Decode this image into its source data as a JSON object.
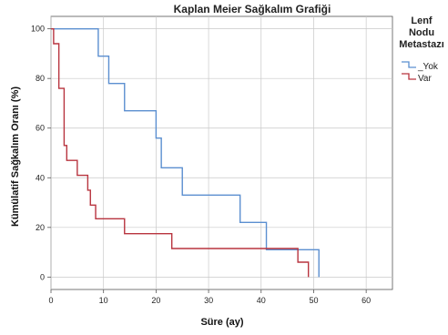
{
  "chart_data": {
    "type": "line",
    "title": "Kaplan Meier Sağkalım Grafiği",
    "xlabel": "Süre (ay)",
    "ylabel": "Kümülatif Sağkalım Oranı (%)",
    "xlim": [
      0,
      65
    ],
    "ylim": [
      -5,
      105
    ],
    "xticks": [
      0,
      10,
      20,
      30,
      40,
      50,
      60
    ],
    "yticks": [
      0,
      20,
      40,
      60,
      80,
      100
    ],
    "grid": true,
    "legend": {
      "title_lines": [
        "Lenf",
        "Nodu",
        "Metastazı"
      ],
      "placement": "right"
    },
    "series": [
      {
        "name": "Yok",
        "legend_label": "_Yok",
        "color": "#5b8fd0",
        "steps": [
          [
            0,
            100
          ],
          [
            9,
            100
          ],
          [
            9,
            89
          ],
          [
            11,
            89
          ],
          [
            11,
            78
          ],
          [
            14,
            78
          ],
          [
            14,
            67
          ],
          [
            20,
            67
          ],
          [
            20,
            56
          ],
          [
            21,
            56
          ],
          [
            21,
            44
          ],
          [
            25,
            44
          ],
          [
            25,
            33
          ],
          [
            36,
            33
          ],
          [
            36,
            22
          ],
          [
            41,
            22
          ],
          [
            41,
            11
          ],
          [
            51,
            11
          ],
          [
            51,
            0
          ]
        ]
      },
      {
        "name": "Var",
        "legend_label": "Var",
        "color": "#b8343f",
        "steps": [
          [
            0,
            100
          ],
          [
            0.5,
            100
          ],
          [
            0.5,
            94
          ],
          [
            1.5,
            94
          ],
          [
            1.5,
            76
          ],
          [
            2.5,
            76
          ],
          [
            2.5,
            53
          ],
          [
            3,
            53
          ],
          [
            3,
            47
          ],
          [
            5,
            47
          ],
          [
            5,
            41
          ],
          [
            7,
            41
          ],
          [
            7,
            35
          ],
          [
            7.5,
            35
          ],
          [
            7.5,
            29
          ],
          [
            8.5,
            29
          ],
          [
            8.5,
            23.5
          ],
          [
            14,
            23.5
          ],
          [
            14,
            17.5
          ],
          [
            23,
            17.5
          ],
          [
            23,
            11.5
          ],
          [
            47,
            11.5
          ],
          [
            47,
            6
          ],
          [
            49,
            6
          ],
          [
            49,
            0
          ]
        ]
      }
    ]
  }
}
